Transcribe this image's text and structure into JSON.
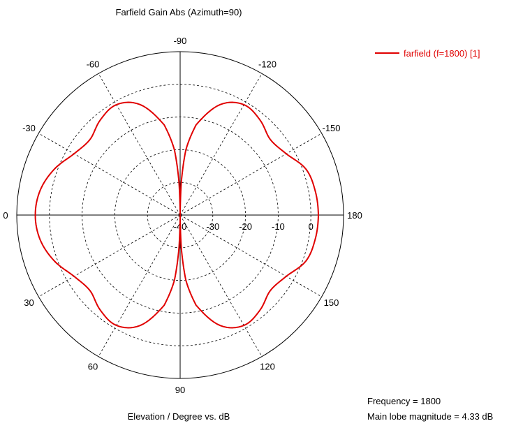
{
  "chart_data": {
    "type": "polar",
    "title": "Farfield Gain Abs (Azimuth=90)",
    "xlabel": "Elevation / Degree vs. dB",
    "angle_tick_labels": [
      "-90",
      "-120",
      "-150",
      "180",
      "150",
      "120",
      "90",
      "60",
      "30",
      "0",
      "-30",
      "-60"
    ],
    "radial_tick_labels": [
      "-40",
      "-30",
      "-20",
      "-10",
      "0"
    ],
    "radial_range_db": [
      -40,
      10
    ],
    "radial_gridline_db": [
      -30,
      -20,
      -10,
      0
    ],
    "grid": true,
    "legend_position": "top-right",
    "series": [
      {
        "name": "farfield (f=1800) [1]",
        "color": "#e00000",
        "theta_deg": [
          -180,
          -170,
          -160,
          -150,
          -140,
          -130,
          -120,
          -110,
          -100,
          -95,
          -92,
          -90,
          -88,
          -85,
          -80,
          -70,
          -60,
          -50,
          -40,
          -30,
          -20,
          -10,
          0,
          10,
          20,
          30,
          40,
          50,
          60,
          70,
          80,
          85,
          88,
          90,
          92,
          95,
          100,
          110,
          120,
          130,
          140,
          150,
          160,
          170,
          180
        ],
        "gain_db": [
          2.3,
          2.0,
          1.0,
          -2.5,
          -4.0,
          -2.0,
          -1.0,
          -4.0,
          -12.0,
          -20.0,
          -30.0,
          -40.0,
          -30.0,
          -20.0,
          -12.0,
          -4.0,
          -1.0,
          -2.0,
          -4.0,
          -2.5,
          1.0,
          3.5,
          4.33,
          3.5,
          1.0,
          -2.5,
          -4.0,
          -2.0,
          -1.0,
          -4.0,
          -12.0,
          -20.0,
          -30.0,
          -40.0,
          -30.0,
          -20.0,
          -12.0,
          -4.0,
          -1.0,
          -2.0,
          -4.0,
          -2.5,
          1.0,
          2.0,
          2.3
        ]
      }
    ]
  },
  "info": {
    "frequency": "Frequency = 1800",
    "main_lobe": "Main lobe magnitude = 4.33 dB"
  }
}
